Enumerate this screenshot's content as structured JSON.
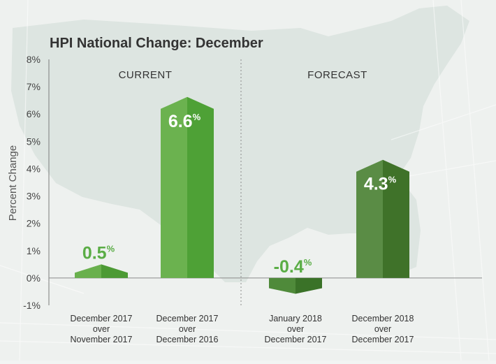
{
  "chart_data": {
    "type": "bar",
    "title": "HPI National Change: December",
    "ylabel": "Percent Change",
    "ylim": [
      -1,
      8
    ],
    "y_ticks": [
      "8%",
      "7%",
      "6%",
      "5%",
      "4%",
      "3%",
      "2%",
      "1%",
      "0%",
      "-1%"
    ],
    "y_tick_values": [
      8,
      7,
      6,
      5,
      4,
      3,
      2,
      1,
      0,
      -1
    ],
    "groups": [
      {
        "label": "CURRENT"
      },
      {
        "label": "FORECAST"
      }
    ],
    "bars": [
      {
        "group": 0,
        "value": 0.5,
        "value_text": "0.5",
        "unit": "%",
        "label_lines": [
          "December 2017",
          "over",
          "November 2017"
        ],
        "color_light": "#69b04d",
        "color_dark": "#4c9a34"
      },
      {
        "group": 0,
        "value": 6.6,
        "value_text": "6.6",
        "unit": "%",
        "label_lines": [
          "December 2017",
          "over",
          "December 2016"
        ],
        "color_light": "#6bb24f",
        "color_dark": "#4ea136"
      },
      {
        "group": 1,
        "value": -0.4,
        "value_text": "-0.4",
        "unit": "%",
        "label_lines": [
          "January 2018",
          "over",
          "December 2017"
        ],
        "color_light": "#4f8a3a",
        "color_dark": "#3a7228"
      },
      {
        "group": 1,
        "value": 4.3,
        "value_text": "4.3",
        "unit": "%",
        "label_lines": [
          "December 2018",
          "over",
          "December 2017"
        ],
        "color_light": "#5a8c45",
        "color_dark": "#3f7229"
      }
    ],
    "colors": {
      "label_green": "#5aad45",
      "axis_text": "#444444",
      "title_text": "#333333"
    }
  }
}
